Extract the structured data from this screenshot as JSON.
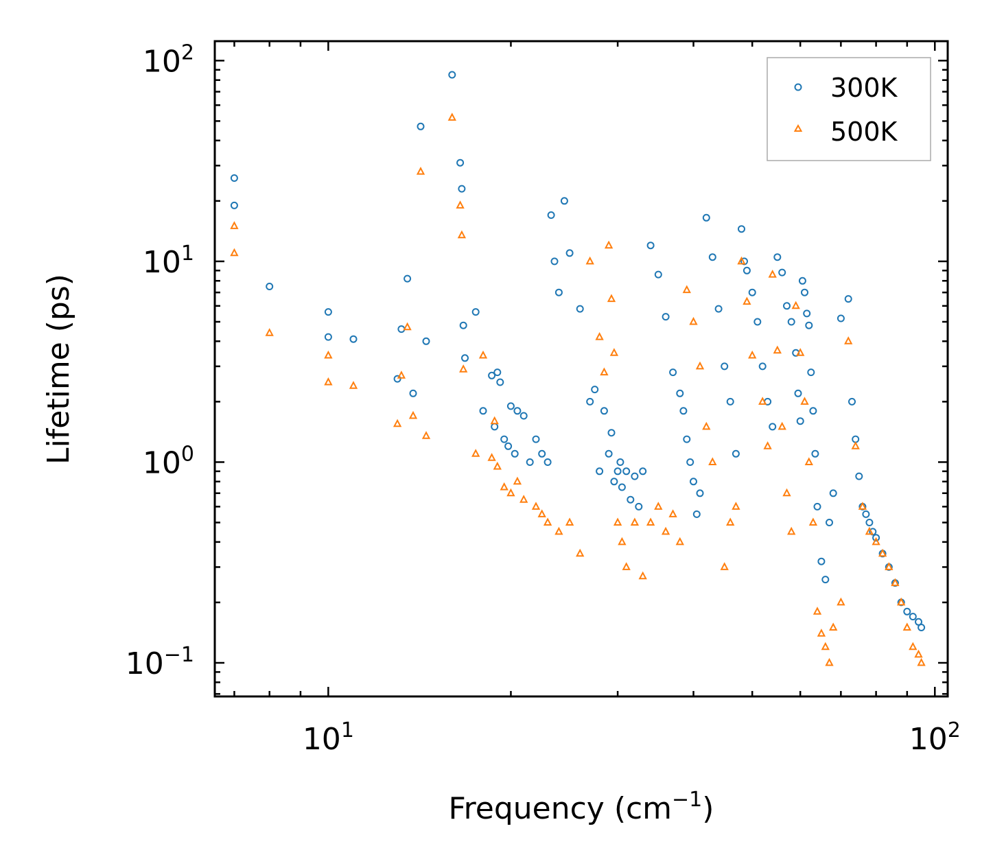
{
  "chart_data": {
    "type": "scatter",
    "xscale": "log",
    "yscale": "log",
    "xlim": [
      6.5,
      105
    ],
    "ylim": [
      0.068,
      125
    ],
    "xlabel_main": "Frequency (cm",
    "xlabel_sup": "−1",
    "xlabel_end": ")",
    "ylabel": "Lifetime (ps)",
    "x_ticks": [
      {
        "base": "10",
        "exp": "1",
        "value": 10
      },
      {
        "base": "10",
        "exp": "2",
        "value": 100
      }
    ],
    "y_ticks": [
      {
        "base": "10",
        "exp": "−1",
        "value": 0.1
      },
      {
        "base": "10",
        "exp": "0",
        "value": 1
      },
      {
        "base": "10",
        "exp": "1",
        "value": 10
      },
      {
        "base": "10",
        "exp": "2",
        "value": 100
      }
    ],
    "legend": {
      "position": "top-right",
      "entries": [
        "300K",
        "500K"
      ]
    },
    "colors": {
      "s300": "#1f77b4",
      "s500": "#ff7f0e"
    },
    "series": [
      {
        "name": "300K",
        "marker": "circle",
        "x": [
          7.0,
          7.0,
          8.0,
          10.0,
          10.0,
          11.0,
          13.0,
          13.2,
          13.5,
          13.8,
          14.2,
          14.5,
          16.0,
          16.5,
          16.6,
          16.7,
          16.8,
          17.5,
          18.0,
          18.6,
          18.8,
          19.0,
          19.2,
          19.5,
          19.8,
          20.0,
          20.3,
          20.5,
          21.0,
          21.5,
          22.0,
          22.5,
          23.0,
          23.3,
          23.6,
          24.0,
          24.5,
          25.0,
          26.0,
          27.0,
          27.5,
          28.0,
          28.5,
          29.0,
          29.3,
          29.6,
          30.0,
          30.3,
          30.5,
          31.0,
          31.5,
          32.0,
          32.5,
          33.0,
          34.0,
          35.0,
          36.0,
          37.0,
          38.0,
          38.5,
          39.0,
          39.5,
          40.0,
          40.5,
          41.0,
          42.0,
          43.0,
          44.0,
          45.0,
          46.0,
          47.0,
          48.0,
          48.5,
          49.0,
          50.0,
          51.0,
          52.0,
          53.0,
          54.0,
          55.0,
          56.0,
          57.0,
          58.0,
          59.0,
          59.5,
          60.0,
          60.5,
          61.0,
          61.5,
          62.0,
          62.5,
          63.0,
          63.5,
          64.0,
          65.0,
          66.0,
          67.0,
          68.0,
          70.0,
          72.0,
          73.0,
          74.0,
          75.0,
          76.0,
          77.0,
          78.0,
          79.0,
          80.0,
          82.0,
          84.0,
          86.0,
          88.0,
          90.0,
          92.0,
          94.0,
          95.0
        ],
        "y": [
          26,
          19,
          7.5,
          5.6,
          4.2,
          4.1,
          2.6,
          4.6,
          8.2,
          2.2,
          47,
          4.0,
          85,
          31,
          23,
          4.8,
          3.3,
          5.6,
          1.8,
          2.7,
          1.5,
          2.8,
          2.5,
          1.3,
          1.2,
          1.9,
          1.1,
          1.8,
          1.7,
          1.0,
          1.3,
          1.1,
          1.0,
          17,
          10,
          7.0,
          20,
          11,
          5.8,
          2.0,
          2.3,
          0.9,
          1.8,
          1.1,
          1.4,
          0.8,
          0.9,
          1.0,
          0.75,
          0.9,
          0.65,
          0.85,
          0.6,
          0.9,
          12,
          8.6,
          5.3,
          2.8,
          2.2,
          1.8,
          1.3,
          1.0,
          0.8,
          0.55,
          0.7,
          16.5,
          10.5,
          5.8,
          3.0,
          2.0,
          1.1,
          14.5,
          10,
          9.0,
          7.0,
          5.0,
          3.0,
          2.0,
          1.5,
          10.5,
          8.8,
          6.0,
          5.0,
          3.5,
          2.2,
          1.6,
          8.0,
          7.0,
          5.5,
          4.8,
          2.8,
          1.8,
          1.1,
          0.6,
          0.32,
          0.26,
          0.5,
          0.7,
          5.2,
          6.5,
          2.0,
          1.3,
          0.85,
          0.6,
          0.55,
          0.5,
          0.45,
          0.42,
          0.35,
          0.3,
          0.25,
          0.2,
          0.18,
          0.17,
          0.16,
          0.15
        ]
      },
      {
        "name": "500K",
        "marker": "triangle",
        "x": [
          7.0,
          7.0,
          8.0,
          10.0,
          10.0,
          11.0,
          13.0,
          13.2,
          13.5,
          13.8,
          14.2,
          14.5,
          16.0,
          16.5,
          16.6,
          16.7,
          17.5,
          18.0,
          18.6,
          18.8,
          19.0,
          19.5,
          20.0,
          20.5,
          21.0,
          22.0,
          22.5,
          23.0,
          24.0,
          25.0,
          26.0,
          27.0,
          28.0,
          28.5,
          29.0,
          29.3,
          29.6,
          30.0,
          30.5,
          31.0,
          32.0,
          33.0,
          34.0,
          35.0,
          36.0,
          37.0,
          38.0,
          39.0,
          40.0,
          41.0,
          42.0,
          43.0,
          45.0,
          46.0,
          47.0,
          48.0,
          49.0,
          50.0,
          52.0,
          53.0,
          54.0,
          55.0,
          56.0,
          57.0,
          58.0,
          59.0,
          60.0,
          61.0,
          62.0,
          63.0,
          64.0,
          65.0,
          66.0,
          67.0,
          68.0,
          70.0,
          72.0,
          74.0,
          76.0,
          78.0,
          80.0,
          82.0,
          84.0,
          86.0,
          88.0,
          90.0,
          92.0,
          94.0,
          95.0
        ],
        "y": [
          15,
          11,
          4.4,
          3.4,
          2.5,
          2.4,
          1.55,
          2.7,
          4.7,
          1.7,
          28,
          1.35,
          52,
          19,
          13.5,
          2.9,
          1.1,
          3.4,
          1.05,
          1.6,
          0.95,
          0.75,
          0.7,
          0.8,
          0.65,
          0.6,
          0.55,
          0.5,
          0.45,
          0.5,
          0.35,
          10,
          4.2,
          2.8,
          12,
          6.5,
          3.5,
          0.5,
          0.4,
          0.3,
          0.5,
          0.27,
          0.5,
          0.6,
          0.45,
          0.55,
          0.4,
          7.2,
          5.0,
          3.0,
          1.5,
          1.0,
          0.3,
          0.5,
          0.6,
          10,
          6.3,
          3.4,
          2.0,
          1.2,
          8.6,
          3.6,
          1.5,
          0.7,
          0.45,
          6.0,
          3.5,
          2.0,
          1.0,
          0.5,
          0.18,
          0.14,
          0.12,
          0.1,
          0.15,
          0.2,
          4.0,
          1.2,
          0.6,
          0.45,
          0.4,
          0.35,
          0.3,
          0.25,
          0.2,
          0.15,
          0.12,
          0.11,
          0.1
        ]
      }
    ]
  }
}
